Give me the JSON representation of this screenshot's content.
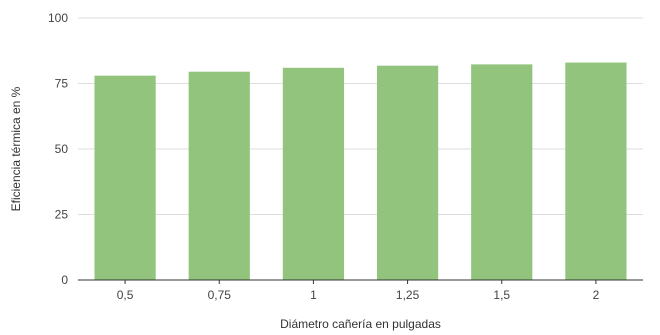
{
  "chart_data": {
    "type": "bar",
    "categories": [
      "0,5",
      "0,75",
      "1",
      "1,25",
      "1,5",
      "2"
    ],
    "values": [
      78,
      79.5,
      81,
      81.8,
      82.3,
      83
    ],
    "xlabel": "Diámetro cañería en pulgadas",
    "ylabel": "Eficiencia térmica en %",
    "ylim": [
      0,
      100
    ],
    "yticks": [
      "0",
      "25",
      "50",
      "75",
      "100"
    ],
    "grid": true,
    "bar_color": "#93c47d",
    "grid_color": "#dddddd",
    "axis_color": "#333333"
  }
}
